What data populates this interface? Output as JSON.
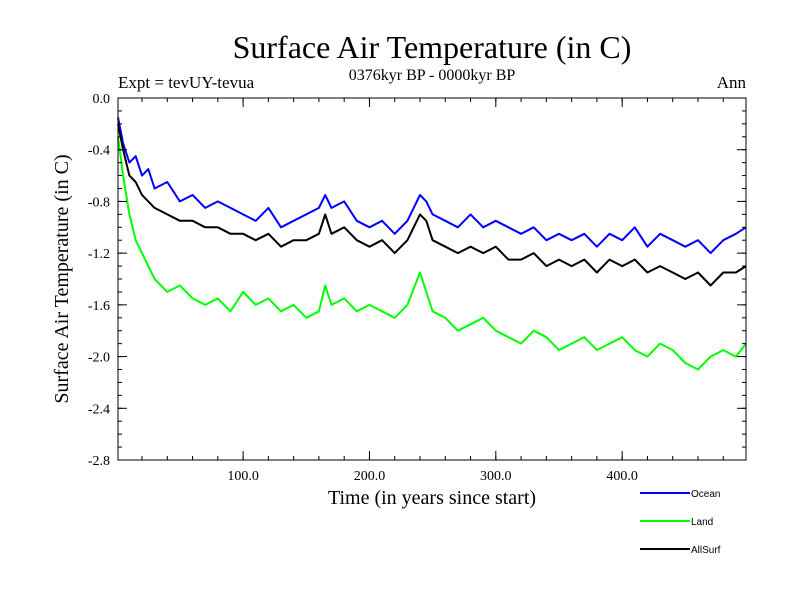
{
  "chart_data": {
    "type": "line",
    "title": "Surface Air Temperature (in C)",
    "subtitle": "0376kyr BP - 0000kyr BP",
    "left_note": "Expt = tevUY-tevua",
    "right_note": "Ann",
    "xlabel": "Time (in years since start)",
    "ylabel": "Surface Air Temperature (in C)",
    "xlim": [
      1,
      498
    ],
    "ylim": [
      -2.8,
      0.0
    ],
    "x_ticks": [
      100,
      200,
      300,
      400
    ],
    "x_tick_labels": [
      "100.0",
      "200.0",
      "300.0",
      "400.0"
    ],
    "y_ticks": [
      0.0,
      -0.4,
      -0.8,
      -1.2,
      -1.6,
      -2.0,
      -2.4,
      -2.8
    ],
    "y_tick_labels": [
      "0.0",
      "-0.4",
      "-0.8",
      "-1.2",
      "-1.6",
      "-2.0",
      "-2.4",
      "-2.8"
    ],
    "grid": false,
    "legend_position": "bottom-right, below plot",
    "series": [
      {
        "name": "Ocean",
        "color": "#0000ff",
        "x": [
          1,
          5,
          10,
          15,
          20,
          25,
          30,
          40,
          50,
          60,
          70,
          80,
          90,
          100,
          110,
          120,
          130,
          140,
          150,
          160,
          165,
          170,
          180,
          190,
          200,
          210,
          220,
          230,
          240,
          245,
          250,
          260,
          270,
          280,
          290,
          300,
          310,
          320,
          330,
          340,
          350,
          360,
          370,
          380,
          390,
          400,
          410,
          420,
          430,
          440,
          450,
          460,
          470,
          480,
          490,
          498
        ],
        "values": [
          -0.15,
          -0.35,
          -0.5,
          -0.45,
          -0.6,
          -0.55,
          -0.7,
          -0.65,
          -0.8,
          -0.75,
          -0.85,
          -0.8,
          -0.85,
          -0.9,
          -0.95,
          -0.85,
          -1.0,
          -0.95,
          -0.9,
          -0.85,
          -0.75,
          -0.85,
          -0.8,
          -0.95,
          -1.0,
          -0.95,
          -1.05,
          -0.95,
          -0.75,
          -0.8,
          -0.9,
          -0.95,
          -1.0,
          -0.9,
          -1.0,
          -0.95,
          -1.0,
          -1.05,
          -1.0,
          -1.1,
          -1.05,
          -1.1,
          -1.05,
          -1.15,
          -1.05,
          -1.1,
          -1.0,
          -1.15,
          -1.05,
          -1.1,
          -1.15,
          -1.1,
          -1.2,
          -1.1,
          -1.05,
          -1.0
        ]
      },
      {
        "name": "Land",
        "color": "#00ff00",
        "x": [
          1,
          5,
          10,
          15,
          20,
          25,
          30,
          40,
          50,
          60,
          70,
          80,
          90,
          100,
          110,
          120,
          130,
          140,
          150,
          160,
          165,
          170,
          180,
          190,
          200,
          210,
          220,
          230,
          240,
          245,
          250,
          260,
          270,
          280,
          290,
          300,
          310,
          320,
          330,
          340,
          350,
          360,
          370,
          380,
          390,
          400,
          410,
          420,
          430,
          440,
          450,
          460,
          470,
          480,
          490,
          498
        ],
        "values": [
          -0.3,
          -0.6,
          -0.9,
          -1.1,
          -1.2,
          -1.3,
          -1.4,
          -1.5,
          -1.45,
          -1.55,
          -1.6,
          -1.55,
          -1.65,
          -1.5,
          -1.6,
          -1.55,
          -1.65,
          -1.6,
          -1.7,
          -1.65,
          -1.45,
          -1.6,
          -1.55,
          -1.65,
          -1.6,
          -1.65,
          -1.7,
          -1.6,
          -1.35,
          -1.5,
          -1.65,
          -1.7,
          -1.8,
          -1.75,
          -1.7,
          -1.8,
          -1.85,
          -1.9,
          -1.8,
          -1.85,
          -1.95,
          -1.9,
          -1.85,
          -1.95,
          -1.9,
          -1.85,
          -1.95,
          -2.0,
          -1.9,
          -1.95,
          -2.05,
          -2.1,
          -2.0,
          -1.95,
          -2.0,
          -1.9
        ]
      },
      {
        "name": "AllSurf",
        "color": "#000000",
        "x": [
          1,
          5,
          10,
          15,
          20,
          25,
          30,
          40,
          50,
          60,
          70,
          80,
          90,
          100,
          110,
          120,
          130,
          140,
          150,
          160,
          165,
          170,
          180,
          190,
          200,
          210,
          220,
          230,
          240,
          245,
          250,
          260,
          270,
          280,
          290,
          300,
          310,
          320,
          330,
          340,
          350,
          360,
          370,
          380,
          390,
          400,
          410,
          420,
          430,
          440,
          450,
          460,
          470,
          480,
          490,
          498
        ],
        "values": [
          -0.2,
          -0.4,
          -0.6,
          -0.65,
          -0.75,
          -0.8,
          -0.85,
          -0.9,
          -0.95,
          -0.95,
          -1.0,
          -1.0,
          -1.05,
          -1.05,
          -1.1,
          -1.05,
          -1.15,
          -1.1,
          -1.1,
          -1.05,
          -0.9,
          -1.05,
          -1.0,
          -1.1,
          -1.15,
          -1.1,
          -1.2,
          -1.1,
          -0.9,
          -0.95,
          -1.1,
          -1.15,
          -1.2,
          -1.15,
          -1.2,
          -1.15,
          -1.25,
          -1.25,
          -1.2,
          -1.3,
          -1.25,
          -1.3,
          -1.25,
          -1.35,
          -1.25,
          -1.3,
          -1.25,
          -1.35,
          -1.3,
          -1.35,
          -1.4,
          -1.35,
          -1.45,
          -1.35,
          -1.35,
          -1.3
        ]
      }
    ]
  }
}
